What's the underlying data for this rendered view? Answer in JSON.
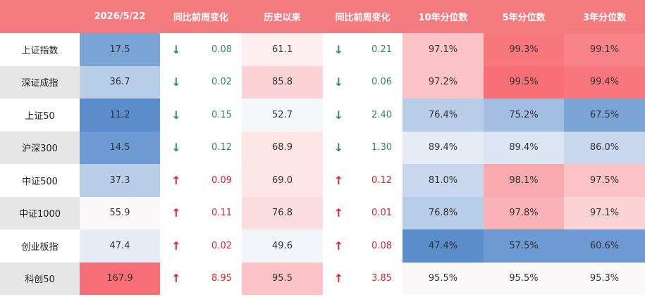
{
  "colors": {
    "header": "#f47b80",
    "down": "#2e8b57",
    "up": "#e0202a"
  },
  "header": {
    "col_name": "",
    "col_date": "2026/5/22",
    "col_wow1": "同比前周变化",
    "col_hist": "历史以来",
    "col_wow2": "同比前周变化",
    "col_p10": "10年分位数",
    "col_p5": "5年分位数",
    "col_p3": "3年分位数"
  },
  "chart_data": {
    "type": "table",
    "columns": [
      "",
      "2026/5/22",
      "同比前周变化",
      "历史以来",
      "同比前周变化",
      "10年分位数",
      "5年分位数",
      "3年分位数"
    ],
    "rows": [
      {
        "name": "上证指数",
        "value": "17.5",
        "dir1": "down",
        "chg1": "0.08",
        "hist": "61.1",
        "dir2": "down",
        "chg2": "0.21",
        "p10": "97.1%",
        "p5": "99.3%",
        "p3": "99.1%",
        "bg": {
          "value": "#7aa3d6",
          "hist": "#fdeef0",
          "p10": "#fbc3c6",
          "p5": "#f7777d",
          "p3": "#f7828a"
        }
      },
      {
        "name": "深证成指",
        "value": "36.7",
        "dir1": "down",
        "chg1": "0.02",
        "hist": "85.8",
        "dir2": "down",
        "chg2": "0.06",
        "p10": "97.2%",
        "p5": "99.5%",
        "p3": "99.4%",
        "bg": {
          "value": "#b8cde8",
          "hist": "#fbd3d6",
          "p10": "#fbc3c6",
          "p5": "#f66f76",
          "p3": "#f7777d"
        }
      },
      {
        "name": "上证50",
        "value": "11.2",
        "dir1": "down",
        "chg1": "0.15",
        "hist": "52.7",
        "dir2": "down",
        "chg2": "2.40",
        "p10": "76.4%",
        "p5": "75.2%",
        "p3": "67.5%",
        "bg": {
          "value": "#5b8ccb",
          "hist": "#f6f7fb",
          "p10": "#b8cde8",
          "p5": "#a2bde1",
          "p3": "#7aa3d6"
        }
      },
      {
        "name": "沪深300",
        "value": "14.5",
        "dir1": "down",
        "chg1": "0.12",
        "hist": "68.9",
        "dir2": "down",
        "chg2": "1.30",
        "p10": "89.4%",
        "p5": "89.4%",
        "p3": "86.0%",
        "bg": {
          "value": "#6d9ad2",
          "hist": "#fde5e7",
          "p10": "#e6ecf6",
          "p5": "#dce5f3",
          "p3": "#c8d7ed"
        }
      },
      {
        "name": "中证500",
        "value": "37.3",
        "dir1": "up",
        "chg1": "0.09",
        "hist": "69.0",
        "dir2": "up",
        "chg2": "0.12",
        "p10": "81.0%",
        "p5": "98.1%",
        "p3": "97.5%",
        "bg": {
          "value": "#b8cde8",
          "hist": "#fde5e7",
          "p10": "#c8d7ed",
          "p5": "#f9aaaf",
          "p3": "#fbc3c6"
        }
      },
      {
        "name": "中证1000",
        "value": "55.9",
        "dir1": "up",
        "chg1": "0.11",
        "hist": "76.8",
        "dir2": "up",
        "chg2": "0.01",
        "p10": "76.8%",
        "p5": "97.8%",
        "p3": "97.1%",
        "bg": {
          "value": "#fbf8fa",
          "hist": "#fbdcdf",
          "p10": "#b8cde8",
          "p5": "#f9b3b8",
          "p3": "#fbd3d6"
        }
      },
      {
        "name": "创业板指",
        "value": "47.4",
        "dir1": "up",
        "chg1": "0.02",
        "hist": "49.6",
        "dir2": "up",
        "chg2": "0.08",
        "p10": "47.4%",
        "p5": "57.5%",
        "p3": "60.6%",
        "bg": {
          "value": "#e6ecf6",
          "hist": "#f2f5fa",
          "p10": "#5b8ccb",
          "p5": "#6d9ad2",
          "p3": "#6d9ad2"
        }
      },
      {
        "name": "科创50",
        "value": "167.9",
        "dir1": "up",
        "chg1": "8.95",
        "hist": "95.5",
        "dir2": "up",
        "chg2": "3.85",
        "p10": "95.5%",
        "p5": "95.5%",
        "p3": "95.3%",
        "bg": {
          "value": "#f66f76",
          "hist": "#fbc3c6",
          "p10": "#fbf8fa",
          "p5": "#fbf8fa",
          "p3": "#fbf8fa"
        }
      }
    ]
  }
}
